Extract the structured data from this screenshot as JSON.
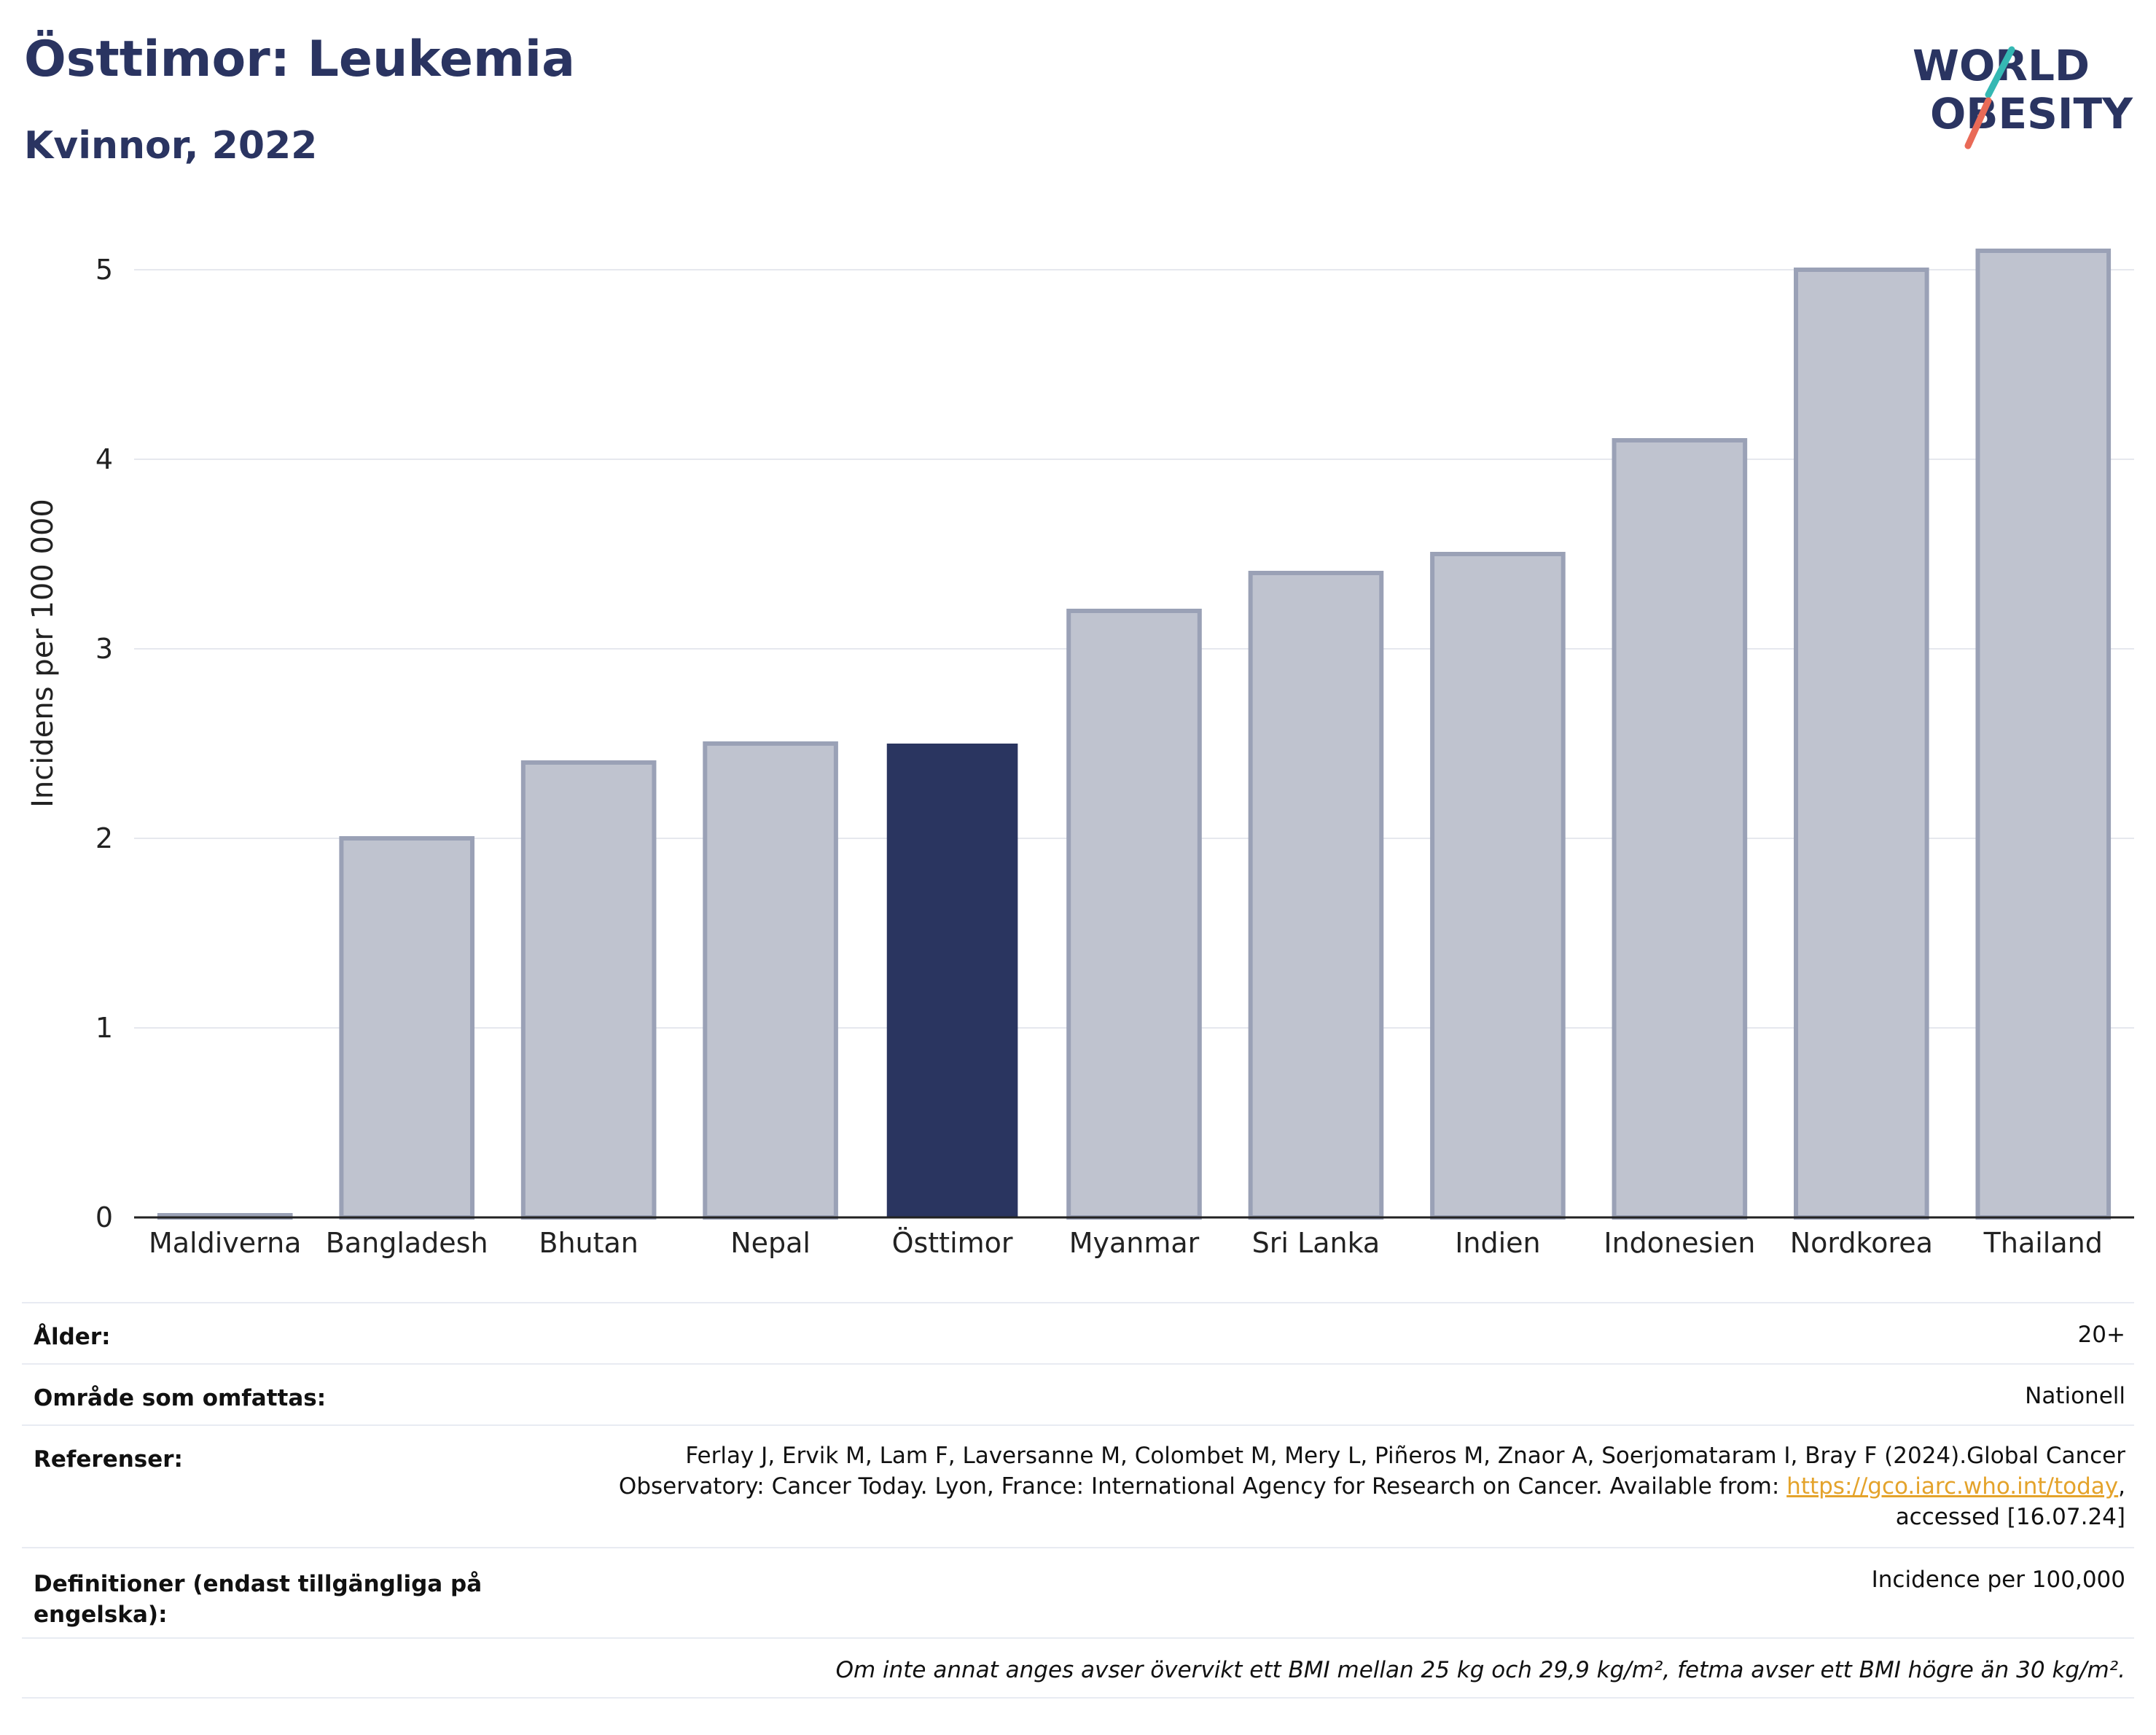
{
  "header": {
    "title": "Östtimor: Leukemia",
    "subtitle": "Kvinnor, 2022",
    "logo_line1": "WORLD",
    "logo_line2": "OBESITY"
  },
  "colors": {
    "highlight_bar": "#2a3560",
    "other_bar_fill": "#bfc3cf",
    "other_bar_stroke": "#9aa1b6",
    "logo_text": "#2a3461",
    "logo_slash_teal": "#35b8b3",
    "logo_slash_coral": "#e96a57",
    "link": "#e4a32b"
  },
  "chart_data": {
    "type": "bar",
    "categories": [
      "Maldiverna",
      "Bangladesh",
      "Bhutan",
      "Nepal",
      "Östtimor",
      "Myanmar",
      "Sri Lanka",
      "Indien",
      "Indonesien",
      "Nordkorea",
      "Thailand"
    ],
    "values": [
      0,
      2.0,
      2.4,
      2.5,
      2.5,
      3.2,
      3.4,
      3.5,
      4.1,
      5.0,
      5.1
    ],
    "highlight": "Östtimor",
    "ylabel": "Incidens per 100 000",
    "ylim": [
      0,
      5.5
    ],
    "yticks": [
      0,
      1,
      2,
      3,
      4,
      5
    ],
    "grid": true
  },
  "meta": {
    "age_label": "Ålder:",
    "age_value": "20+",
    "area_label": "Område som omfattas:",
    "area_value": "Nationell",
    "refs_label": "Referenser:",
    "refs_line1": "Ferlay J, Ervik M, Lam F, Laversanne M, Colombet M, Mery L, Piñeros M, Znaor A, Soerjomataram I, Bray F (2024).Global Cancer",
    "refs_line2": "Observatory: Cancer Today. Lyon, France: International Agency for Research on Cancer. Available from: ",
    "refs_link": "https://gco.iarc.who.int/today",
    "refs_comma": ",",
    "refs_line3": "accessed [16.07.24]",
    "defs_label": "Definitioner (endast tillgängliga på engelska):",
    "defs_value": "Incidence per 100,000",
    "note": "Om inte annat anges avser övervikt ett BMI mellan 25 kg och 29,9 kg/m², fetma avser ett BMI högre än 30 kg/m²."
  }
}
